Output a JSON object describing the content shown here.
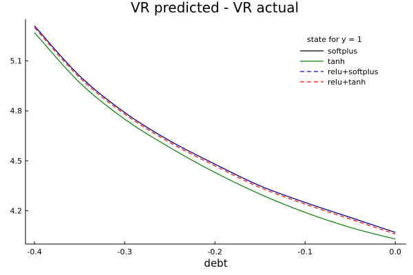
{
  "chart_data": {
    "type": "line",
    "title": "VR predicted - VR actual",
    "xlabel": "debt",
    "ylabel": "",
    "xlim": [
      -0.41,
      0.012
    ],
    "ylim": [
      4.0,
      5.35
    ],
    "xticks": [
      -0.4,
      -0.3,
      -0.2,
      -0.1,
      0.0
    ],
    "xtick_labels": [
      "-0.4",
      "-0.3",
      "-0.2",
      "-0.1",
      "0.0"
    ],
    "yticks": [
      4.2,
      4.5,
      4.8,
      5.1
    ],
    "ytick_labels": [
      "4.2",
      "4.5",
      "4.8",
      "5.1"
    ],
    "grid": false,
    "legend_title": "state for y = 1",
    "legend_position": "top-right",
    "x": [
      -0.4,
      -0.35,
      -0.3,
      -0.25,
      -0.2,
      -0.15,
      -0.1,
      -0.05,
      0.0
    ],
    "series": [
      {
        "name": "softplus",
        "color": "#000000",
        "dash": "solid",
        "values": [
          5.31,
          5.01,
          4.79,
          4.62,
          4.48,
          4.35,
          4.25,
          4.16,
          4.07
        ]
      },
      {
        "name": "tanh",
        "color": "#008000",
        "dash": "solid",
        "values": [
          5.27,
          4.97,
          4.75,
          4.58,
          4.43,
          4.3,
          4.19,
          4.1,
          4.03
        ]
      },
      {
        "name": "relu+softplus",
        "color": "#0000ff",
        "dash": "dashed",
        "values": [
          5.31,
          5.01,
          4.79,
          4.62,
          4.48,
          4.35,
          4.25,
          4.16,
          4.07
        ]
      },
      {
        "name": "relu+tanh",
        "color": "#ff0000",
        "dash": "dashed",
        "values": [
          5.3,
          5.0,
          4.78,
          4.61,
          4.47,
          4.34,
          4.24,
          4.15,
          4.06
        ]
      }
    ]
  }
}
